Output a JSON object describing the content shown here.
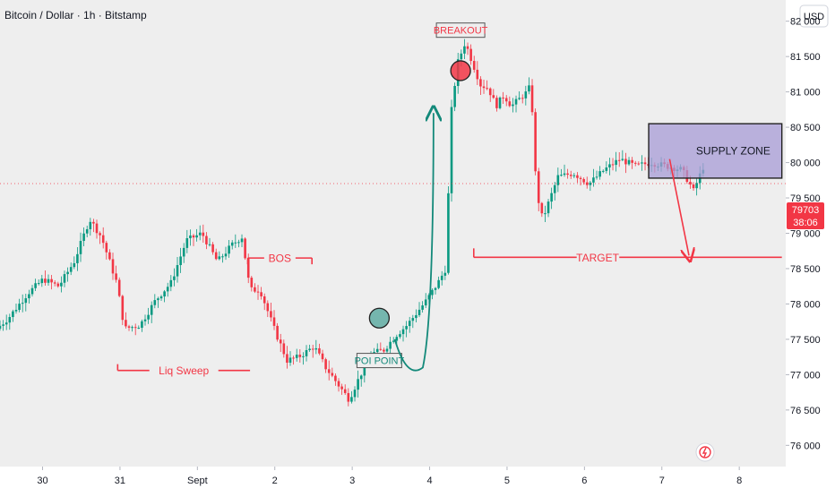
{
  "header": {
    "title": "Bitcoin / Dollar · 1h · Bitstamp",
    "currency_button": "USD"
  },
  "price_label": {
    "price": "79703",
    "countdown": "38:06",
    "color": "#f23645"
  },
  "colors": {
    "up": "#089981",
    "down": "#f23645",
    "annotation_red": "#f23645",
    "annotation_teal": "#13897a",
    "supply_fill": "#a79bd6"
  },
  "chart_data": {
    "type": "candlestick",
    "y_ticks": [
      {
        "value": 82000,
        "label": "82 000"
      },
      {
        "value": 81500,
        "label": "81 500"
      },
      {
        "value": 81000,
        "label": "81 000"
      },
      {
        "value": 80500,
        "label": "80 500"
      },
      {
        "value": 80000,
        "label": "80 000"
      },
      {
        "value": 79500,
        "label": "79 500"
      },
      {
        "value": 79000,
        "label": "79 000"
      },
      {
        "value": 78500,
        "label": "78 500"
      },
      {
        "value": 78000,
        "label": "78 000"
      },
      {
        "value": 77500,
        "label": "77 500"
      },
      {
        "value": 77000,
        "label": "77 000"
      },
      {
        "value": 76500,
        "label": "76 500"
      },
      {
        "value": 76000,
        "label": "76 000"
      }
    ],
    "ylim": [
      75700,
      82300
    ],
    "x_ticks": [
      {
        "day": 30,
        "label": "30"
      },
      {
        "day": 31,
        "label": "31"
      },
      {
        "day": 32,
        "label": "Sept"
      },
      {
        "day": 33,
        "label": "2"
      },
      {
        "day": 34,
        "label": "3"
      },
      {
        "day": 35,
        "label": "4"
      },
      {
        "day": 36,
        "label": "5"
      },
      {
        "day": 37,
        "label": "6"
      },
      {
        "day": 38,
        "label": "7"
      },
      {
        "day": 39,
        "label": "8"
      }
    ],
    "xlim": [
      29.45,
      39.6
    ],
    "current_price": 79703,
    "annotations": {
      "bos": {
        "label": "BOS",
        "price": 78650,
        "x_start": 32.65,
        "x_end": 33.48
      },
      "liq_sweep": {
        "label": "Liq Sweep",
        "price": 77060,
        "x_start": 30.97,
        "x_end": 32.68
      },
      "target": {
        "label": "TARGET",
        "price": 78660,
        "x_start": 35.57,
        "x_end": 39.55
      },
      "supply_zone": {
        "label": "SUPPLY ZONE",
        "price_top": 80550,
        "price_bottom": 79780,
        "x_start": 37.83,
        "x_end": 39.55
      },
      "breakout": {
        "label": "BREAKOUT",
        "price": 81300,
        "x": 35.4
      },
      "poi_point": {
        "label": "POI POINT",
        "price": 77800,
        "x": 34.35
      }
    }
  }
}
